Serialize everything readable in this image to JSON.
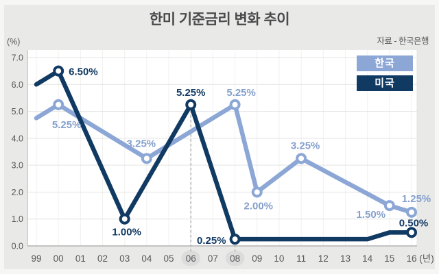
{
  "page": {
    "background": "#f6f6f5",
    "panel_background": "#e9e9e8"
  },
  "chart_data": {
    "type": "line",
    "title": "한미 기준금리 변화 추이",
    "source": "자료 - 한국은행",
    "y_unit_label": "(%)",
    "x_unit_label": "(년)",
    "categories": [
      "99",
      "00",
      "01",
      "02",
      "03",
      "04",
      "05",
      "06",
      "07",
      "08",
      "09",
      "10",
      "11",
      "12",
      "13",
      "14",
      "15",
      "16"
    ],
    "ylim": [
      0,
      7
    ],
    "yticks": [
      0,
      1,
      2,
      3,
      4,
      5,
      6,
      7
    ],
    "ytick_labels": [
      "0.0",
      "1.0",
      "2.0",
      "3.0",
      "4.0",
      "5.0",
      "6.0",
      "7.0"
    ],
    "grid": true,
    "legend_position": "top-right",
    "highlighted_years": [
      "06",
      "08"
    ],
    "dashed_guides": [
      {
        "year": "06",
        "value": 5.25
      },
      {
        "year": "08",
        "value": 0.25
      }
    ],
    "series": [
      {
        "name": "한국",
        "color": "#8ca7d6",
        "label_color": "#85a0cd",
        "points": [
          {
            "x": "99",
            "y": 4.75
          },
          {
            "x": "00",
            "y": 5.25,
            "marker": true,
            "label": "5.25%",
            "dx": 12,
            "dy": 34,
            "anchor": "middle"
          },
          {
            "x": "04",
            "y": 3.25,
            "marker": true,
            "label": "3.25%",
            "dx": -8,
            "dy": -17,
            "anchor": "middle"
          },
          {
            "x": "08",
            "y": 5.25,
            "marker": true,
            "label": "5.25%",
            "dx": 9,
            "dy": -13,
            "anchor": "middle"
          },
          {
            "x": "09",
            "y": 2.0,
            "marker": true,
            "label": "2.00%",
            "dx": 2,
            "dy": 25,
            "anchor": "middle"
          },
          {
            "x": "11",
            "y": 3.25,
            "marker": true,
            "label": "3.25%",
            "dx": 6,
            "dy": -14,
            "anchor": "middle"
          },
          {
            "x": "15",
            "y": 1.5,
            "marker": true,
            "label": "1.50%",
            "dx": -27,
            "dy": 18,
            "anchor": "middle"
          },
          {
            "x": "16",
            "y": 1.25,
            "marker": true,
            "label": "1.25%",
            "dx": 7,
            "dy": -15,
            "anchor": "middle"
          }
        ]
      },
      {
        "name": "미국",
        "color": "#113a63",
        "label_color": "#113a63",
        "points": [
          {
            "x": "99",
            "y": 6.0
          },
          {
            "x": "00",
            "y": 6.5,
            "marker": true,
            "label": "6.50%",
            "dx": 15,
            "dy": 6,
            "anchor": "start"
          },
          {
            "x": "03",
            "y": 1.0,
            "marker": true,
            "label": "1.00%",
            "dx": 3,
            "dy": 24,
            "anchor": "middle"
          },
          {
            "x": "06",
            "y": 5.25,
            "marker": true,
            "label": "5.25%",
            "dx": 0,
            "dy": -13,
            "anchor": "middle"
          },
          {
            "x": "08",
            "y": 0.25,
            "marker": true,
            "label": "0.25%",
            "dx": -13,
            "dy": 7,
            "anchor": "end"
          },
          {
            "x": "14",
            "y": 0.25
          },
          {
            "x": "15",
            "y": 0.5
          },
          {
            "x": "16",
            "y": 0.5,
            "marker": true,
            "label": "0.50%",
            "dx": 3,
            "dy": -9,
            "anchor": "middle"
          }
        ]
      }
    ],
    "style": {
      "plot_bg": "#ffffff",
      "h_grid_color": "#e3e3e2",
      "v_grid_color": "#f1f1f0",
      "x_axis_color": "#b3b3b3",
      "y_axis_color": "#c9c9c9",
      "tick_text_color": "#58585a",
      "highlight_circle_color": "#dcdcdc",
      "dashed_guide_color": "#b0b0b0"
    }
  }
}
